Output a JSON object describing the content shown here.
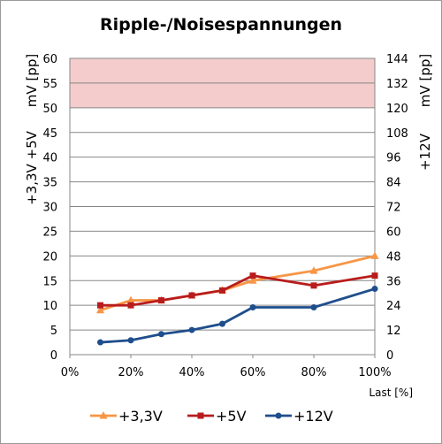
{
  "chart_data": {
    "type": "line",
    "title": "Ripple-/Noisespannungen",
    "xlabel": "Last [%]",
    "ylabel_left": [
      "+3,3V +5V",
      "mV [pp]"
    ],
    "ylabel_right": [
      "+12V",
      "mV [pp]"
    ],
    "x_ticks": [
      "0%",
      "20%",
      "40%",
      "60%",
      "80%",
      "100%"
    ],
    "xlim": [
      0,
      100
    ],
    "ylim_left": [
      0,
      60
    ],
    "ylim_right": [
      0,
      144
    ],
    "y_ticks_left": [
      "0",
      "5",
      "10",
      "15",
      "20",
      "25",
      "30",
      "35",
      "40",
      "45",
      "50",
      "55",
      "60"
    ],
    "y_ticks_right": [
      "0",
      "12",
      "24",
      "36",
      "48",
      "60",
      "72",
      "84",
      "96",
      "108",
      "120",
      "132",
      "144"
    ],
    "grid": true,
    "legend_position": "bottom",
    "limit_band": {
      "from": 50,
      "to": 60,
      "axis": "left",
      "color": "#f4cccc"
    },
    "series": [
      {
        "name": "+3,3V",
        "axis": "left",
        "color": "#f79646",
        "marker": "triangle",
        "x": [
          10,
          20,
          30,
          40,
          50,
          60,
          80,
          100
        ],
        "values": [
          9,
          11,
          11,
          12,
          13,
          15,
          17,
          20
        ]
      },
      {
        "name": "+5V",
        "axis": "left",
        "color": "#b91c1c",
        "marker": "square",
        "x": [
          10,
          20,
          30,
          40,
          50,
          60,
          80,
          100
        ],
        "values": [
          10,
          10,
          11,
          12,
          13,
          16,
          14,
          16
        ]
      },
      {
        "name": "+12V",
        "axis": "right",
        "color": "#1f4e8c",
        "marker": "circle",
        "x": [
          10,
          20,
          30,
          40,
          50,
          60,
          80,
          100
        ],
        "values": [
          6,
          7,
          10,
          12,
          15,
          23,
          23,
          32
        ]
      }
    ]
  }
}
